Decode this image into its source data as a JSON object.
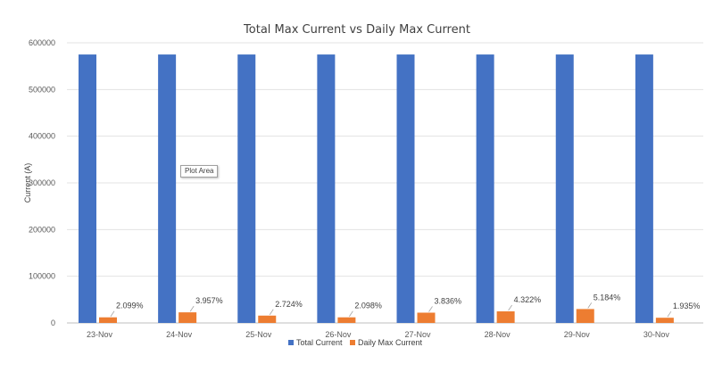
{
  "chart_data": {
    "type": "bar",
    "title": "Total Max Current vs Daily Max Current",
    "ylabel": "Current (A)",
    "xlabel": "",
    "ylim": [
      0,
      600000
    ],
    "yticks": [
      0,
      100000,
      200000,
      300000,
      400000,
      500000,
      600000
    ],
    "categories": [
      "23-Nov",
      "24-Nov",
      "25-Nov",
      "26-Nov",
      "27-Nov",
      "28-Nov",
      "29-Nov",
      "30-Nov"
    ],
    "series": [
      {
        "name": "Total Current",
        "color": "#4472C4",
        "values": [
          575000,
          575000,
          575000,
          575000,
          575000,
          575000,
          575000,
          575000
        ]
      },
      {
        "name": "Daily Max Current",
        "color": "#ED7D31",
        "values": [
          12000,
          22700,
          15700,
          12000,
          22000,
          24800,
          29800,
          11100
        ],
        "labels": [
          "2.099%",
          "3.957%",
          "2.724%",
          "2.098%",
          "3.836%",
          "4.322%",
          "5.184%",
          "1.935%"
        ]
      }
    ],
    "grid": true,
    "legend": "bottom"
  },
  "tooltip": "Plot Area"
}
